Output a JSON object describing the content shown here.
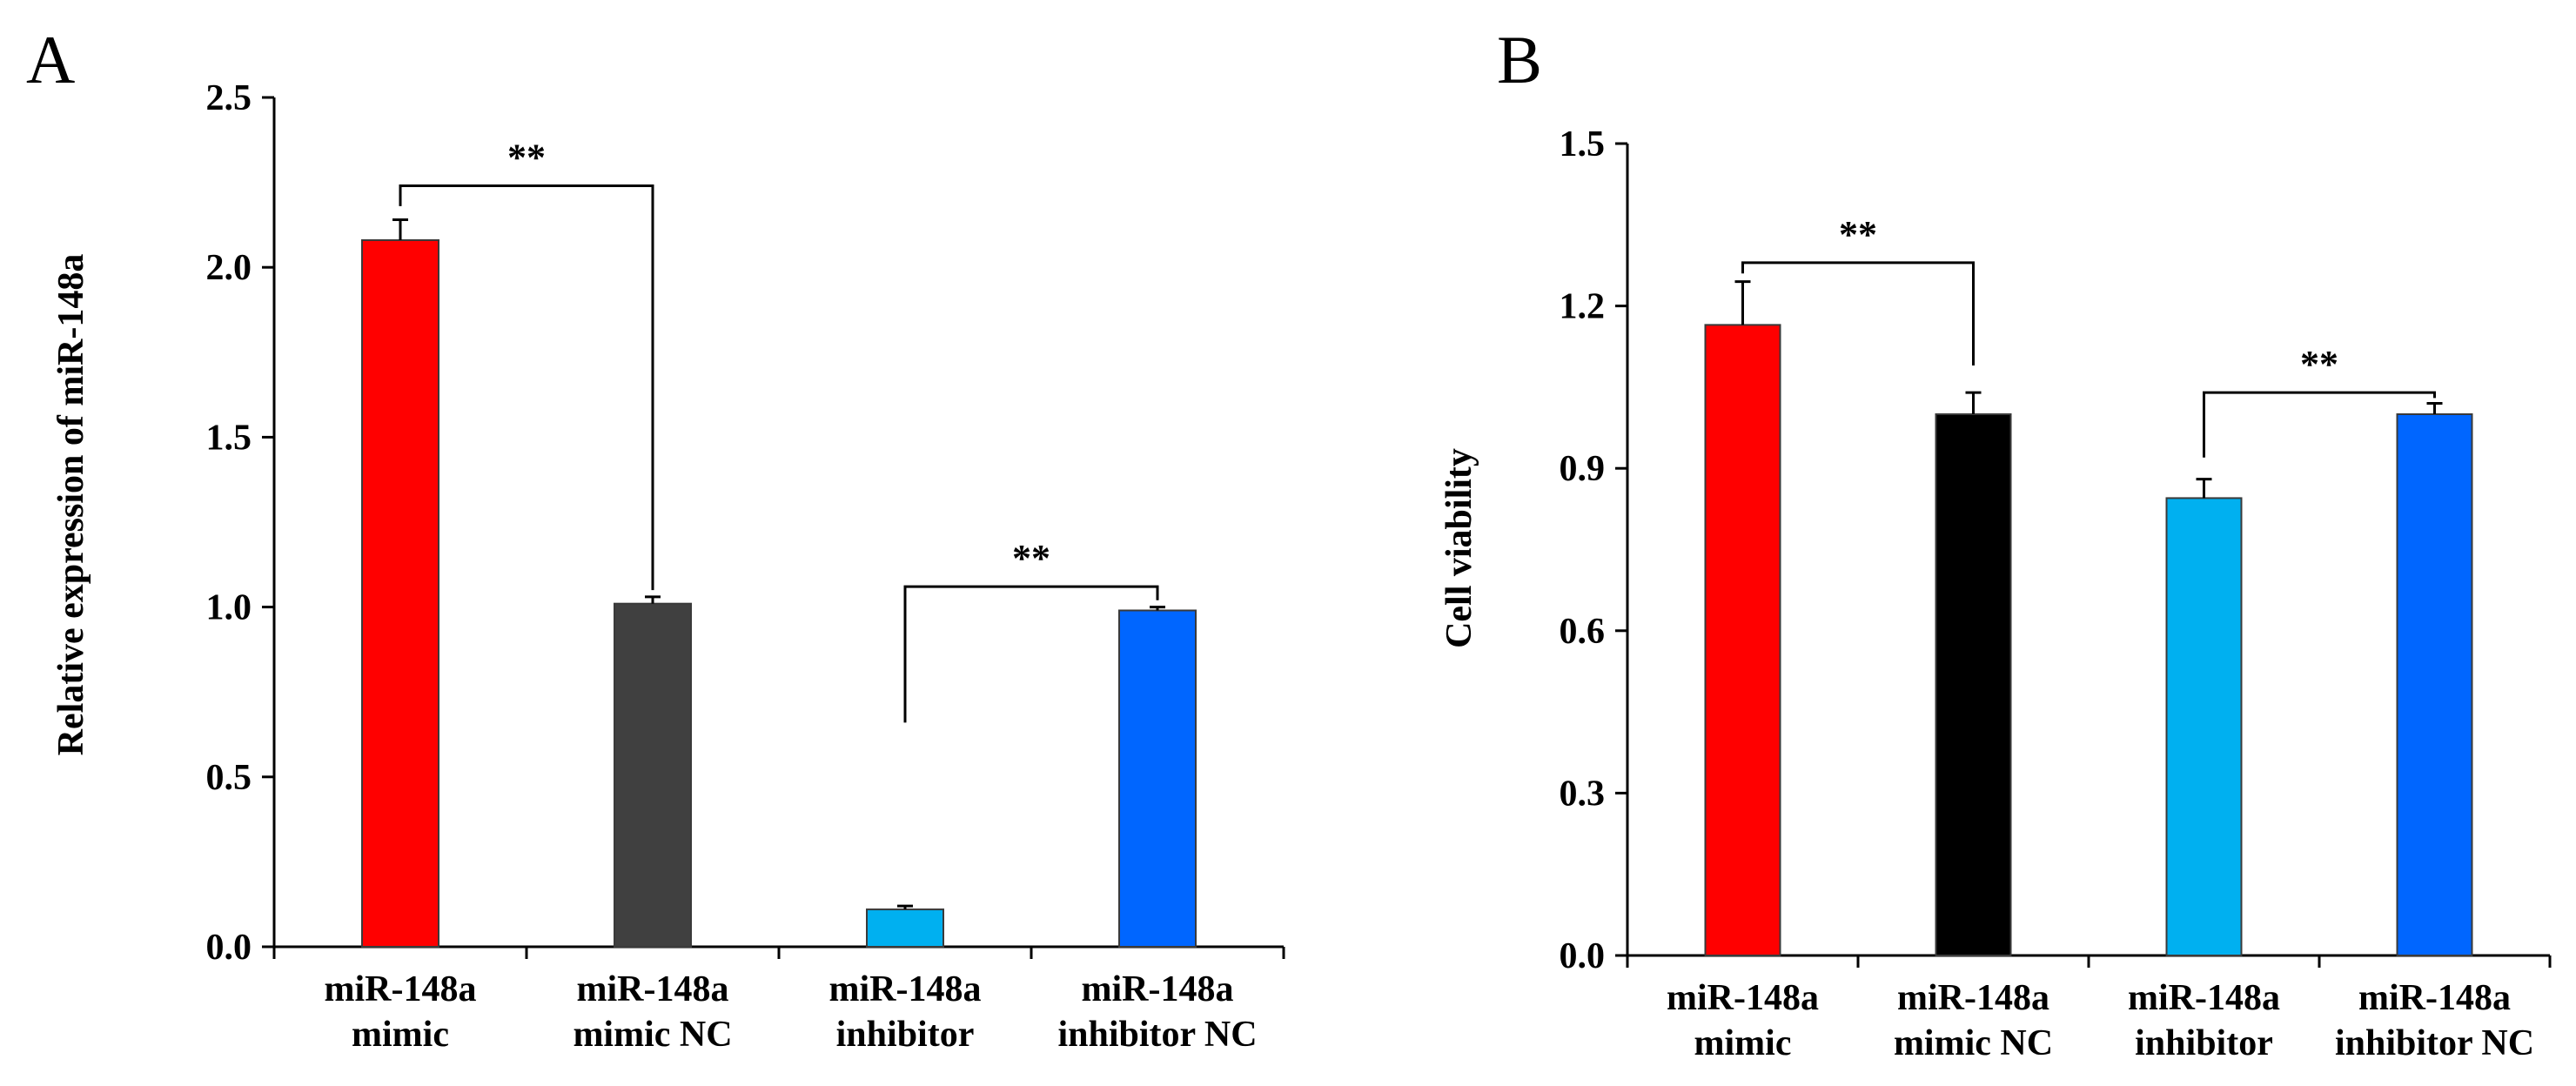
{
  "chart_data": [
    {
      "type": "bar",
      "panel_label": "A",
      "title": "",
      "xlabel": "",
      "ylabel": "Relative expression of miR-148a",
      "ylim": [
        0,
        2.5
      ],
      "yticks": [
        "0.0",
        "0.5",
        "1.0",
        "1.5",
        "2.0",
        "2.5"
      ],
      "categories": [
        [
          "miR-148a",
          "mimic"
        ],
        [
          "miR-148a",
          "mimic NC"
        ],
        [
          "miR-148a",
          "inhibitor"
        ],
        [
          "miR-148a",
          "inhibitor NC"
        ]
      ],
      "values": [
        2.08,
        1.01,
        0.11,
        0.99
      ],
      "errors": [
        0.06,
        0.02,
        0.01,
        0.01
      ],
      "colors": [
        "#ff0000",
        "#404040",
        "#00b0f0",
        "#0066ff"
      ],
      "significance": [
        {
          "from": 0,
          "to": 1,
          "label": "**",
          "bracket_y": 2.24,
          "left_drop": 2.18,
          "right_drop": 1.05
        },
        {
          "from": 2,
          "to": 3,
          "label": "**",
          "bracket_y": 1.06,
          "left_drop": 0.66,
          "right_drop": 1.02
        }
      ]
    },
    {
      "type": "bar",
      "panel_label": "B",
      "title": "",
      "xlabel": "",
      "ylabel": "Cell viability",
      "ylim": [
        0,
        1.5
      ],
      "yticks": [
        "0.0",
        "0.3",
        "0.6",
        "0.9",
        "1.2",
        "1.5"
      ],
      "categories": [
        [
          "miR-148a",
          "mimic"
        ],
        [
          "miR-148a",
          "mimic NC"
        ],
        [
          "miR-148a",
          "inhibitor"
        ],
        [
          "miR-148a",
          "inhibitor NC"
        ]
      ],
      "values": [
        1.165,
        1.0,
        0.845,
        1.0
      ],
      "errors": [
        0.08,
        0.04,
        0.035,
        0.02
      ],
      "colors": [
        "#ff0000",
        "#000000",
        "#00b0f0",
        "#0066ff"
      ],
      "significance": [
        {
          "from": 0,
          "to": 1,
          "label": "**",
          "bracket_y": 1.28,
          "left_drop": 1.26,
          "right_drop": 1.09
        },
        {
          "from": 2,
          "to": 3,
          "label": "**",
          "bracket_y": 1.04,
          "left_drop": 0.92,
          "right_drop": 1.03
        }
      ]
    }
  ]
}
